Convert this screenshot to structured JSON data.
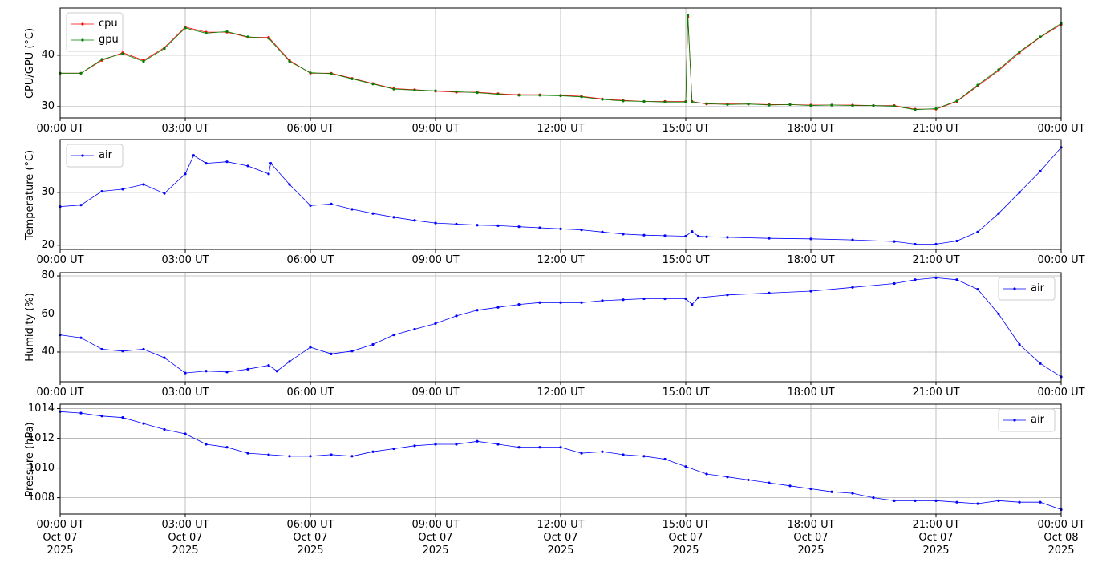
{
  "chart_data": [
    {
      "type": "line",
      "ylabel": "CPU/GPU (°C)",
      "legend": "upper left",
      "grid": true,
      "x": [
        0,
        0.5,
        1,
        1.5,
        2,
        2.5,
        3,
        3.5,
        4,
        4.5,
        5,
        5.5,
        6,
        6.5,
        7,
        7.5,
        8,
        8.5,
        9,
        9.5,
        10,
        10.5,
        11,
        11.5,
        12,
        12.5,
        13,
        13.5,
        14,
        14.5,
        15,
        15.05,
        15.15,
        15.5,
        16,
        16.5,
        17,
        17.5,
        18,
        18.5,
        19,
        19.5,
        20,
        20.5,
        21,
        21.5,
        22,
        22.5,
        23,
        23.5,
        24
      ],
      "series": [
        {
          "name": "cpu",
          "color": "#ff0000",
          "values": [
            36.5,
            36.5,
            39,
            40.5,
            39,
            41.5,
            45.5,
            44.5,
            44.5,
            43.5,
            43.5,
            39,
            36.5,
            36.5,
            35.5,
            34.5,
            33.5,
            33.3,
            33,
            32.8,
            32.8,
            32.5,
            32.3,
            32.3,
            32.2,
            32,
            31.5,
            31.2,
            31,
            31,
            31,
            47.5,
            31,
            30.5,
            30.5,
            30.5,
            30.4,
            30.4,
            30.3,
            30.3,
            30.3,
            30.2,
            30.2,
            29.5,
            29.5,
            31,
            34,
            37,
            40.5,
            43.5,
            46
          ]
        },
        {
          "name": "gpu",
          "color": "#008000",
          "values": [
            36.5,
            36.5,
            39.2,
            40.3,
            38.8,
            41.3,
            45.3,
            44.3,
            44.6,
            43.6,
            43.3,
            38.8,
            36.6,
            36.4,
            35.4,
            34.4,
            33.4,
            33.2,
            33.1,
            32.9,
            32.7,
            32.4,
            32.2,
            32.2,
            32.1,
            31.9,
            31.4,
            31.1,
            31,
            30.9,
            30.9,
            47.8,
            30.9,
            30.6,
            30.4,
            30.5,
            30.3,
            30.4,
            30.2,
            30.3,
            30.2,
            30.2,
            30.1,
            29.4,
            29.6,
            31.1,
            34.2,
            37.2,
            40.7,
            43.6,
            46.2
          ]
        }
      ],
      "xlim": [
        0,
        24
      ],
      "xticks": [
        {
          "value": 0,
          "label": "00:00 UT"
        },
        {
          "value": 3,
          "label": "03:00 UT"
        },
        {
          "value": 6,
          "label": "06:00 UT"
        },
        {
          "value": 9,
          "label": "09:00 UT"
        },
        {
          "value": 12,
          "label": "12:00 UT"
        },
        {
          "value": 15,
          "label": "15:00 UT"
        },
        {
          "value": 18,
          "label": "18:00 UT"
        },
        {
          "value": 21,
          "label": "21:00 UT"
        },
        {
          "value": 24,
          "label": "00:00 UT"
        }
      ],
      "ylim": [
        27.8,
        49.2
      ],
      "yticks": [
        30,
        40
      ]
    },
    {
      "type": "line",
      "ylabel": "Temperature (°C)",
      "legend": "upper left",
      "grid": true,
      "x": [
        0,
        0.5,
        1,
        1.5,
        2,
        2.5,
        3,
        3.2,
        3.5,
        4,
        4.5,
        5,
        5.05,
        5.5,
        6,
        6.5,
        7,
        7.5,
        8,
        8.5,
        9,
        9.5,
        10,
        10.5,
        11,
        11.5,
        12,
        12.5,
        13,
        13.5,
        14,
        14.5,
        15,
        15.15,
        15.3,
        15.5,
        16,
        17,
        18,
        19,
        20,
        20.5,
        21,
        21.5,
        22,
        22.5,
        23,
        23.5,
        24
      ],
      "series": [
        {
          "name": "air",
          "color": "#0000ff",
          "values": [
            27.3,
            27.6,
            30.2,
            30.6,
            31.5,
            29.8,
            33.5,
            37,
            35.5,
            35.8,
            35,
            33.5,
            35.5,
            31.5,
            27.5,
            27.8,
            26.8,
            26,
            25.3,
            24.7,
            24.2,
            24,
            23.8,
            23.7,
            23.5,
            23.3,
            23.1,
            22.9,
            22.5,
            22.1,
            21.9,
            21.8,
            21.7,
            22.6,
            21.7,
            21.6,
            21.5,
            21.3,
            21.2,
            21,
            20.7,
            20.2,
            20.2,
            20.8,
            22.5,
            26,
            30,
            34,
            38.5
          ]
        }
      ],
      "xlim": [
        0,
        24
      ],
      "xticks": [
        {
          "value": 0,
          "label": "00:00 UT"
        },
        {
          "value": 3,
          "label": "03:00 UT"
        },
        {
          "value": 6,
          "label": "06:00 UT"
        },
        {
          "value": 9,
          "label": "09:00 UT"
        },
        {
          "value": 12,
          "label": "12:00 UT"
        },
        {
          "value": 15,
          "label": "15:00 UT"
        },
        {
          "value": 18,
          "label": "18:00 UT"
        },
        {
          "value": 21,
          "label": "21:00 UT"
        },
        {
          "value": 24,
          "label": "00:00 UT"
        }
      ],
      "ylim": [
        19.2,
        40
      ],
      "yticks": [
        20,
        30
      ]
    },
    {
      "type": "line",
      "ylabel": "Humidity (%)",
      "legend": "upper right",
      "grid": true,
      "x": [
        0,
        0.5,
        1,
        1.5,
        2,
        2.5,
        3,
        3.5,
        4,
        4.5,
        5,
        5.2,
        5.5,
        6,
        6.5,
        7,
        7.5,
        8,
        8.5,
        9,
        9.5,
        10,
        10.5,
        11,
        11.5,
        12,
        12.5,
        13,
        13.5,
        14,
        14.5,
        15,
        15.15,
        15.3,
        16,
        17,
        18,
        19,
        20,
        20.5,
        21,
        21.5,
        22,
        22.5,
        23,
        23.5,
        24
      ],
      "series": [
        {
          "name": "air",
          "color": "#0000ff",
          "values": [
            49,
            47.5,
            41.5,
            40.5,
            41.5,
            37,
            29,
            30,
            29.5,
            31,
            33,
            30,
            35,
            42.5,
            39,
            40.5,
            44,
            49,
            52,
            55,
            59,
            62,
            63.5,
            65,
            66,
            66,
            66,
            67,
            67.5,
            68,
            68,
            68,
            65,
            68.5,
            70,
            71,
            72,
            74,
            76,
            78,
            79,
            78,
            73,
            60,
            44,
            34,
            27
          ]
        }
      ],
      "xlim": [
        0,
        24
      ],
      "xticks": [
        {
          "value": 0,
          "label": "00:00 UT"
        },
        {
          "value": 3,
          "label": "03:00 UT"
        },
        {
          "value": 6,
          "label": "06:00 UT"
        },
        {
          "value": 9,
          "label": "09:00 UT"
        },
        {
          "value": 12,
          "label": "12:00 UT"
        },
        {
          "value": 15,
          "label": "15:00 UT"
        },
        {
          "value": 18,
          "label": "18:00 UT"
        },
        {
          "value": 21,
          "label": "21:00 UT"
        },
        {
          "value": 24,
          "label": "00:00 UT"
        }
      ],
      "ylim": [
        24.4,
        81.7
      ],
      "yticks": [
        40,
        60,
        80
      ]
    },
    {
      "type": "line",
      "ylabel": "Pressure (hPa)",
      "legend": "upper right",
      "grid": true,
      "x": [
        0,
        0.5,
        1,
        1.5,
        2,
        2.5,
        3,
        3.5,
        4,
        4.5,
        5,
        5.5,
        6,
        6.5,
        7,
        7.5,
        8,
        8.5,
        9,
        9.5,
        10,
        10.5,
        11,
        11.5,
        12,
        12.5,
        13,
        13.5,
        14,
        14.5,
        15,
        15.5,
        16,
        16.5,
        17,
        17.5,
        18,
        18.5,
        19,
        19.5,
        20,
        20.5,
        21,
        21.5,
        22,
        22.5,
        23,
        23.5,
        24
      ],
      "series": [
        {
          "name": "air",
          "color": "#0000ff",
          "values": [
            1013.8,
            1013.7,
            1013.5,
            1013.4,
            1013,
            1012.6,
            1012.3,
            1011.6,
            1011.4,
            1011,
            1010.9,
            1010.8,
            1010.8,
            1010.9,
            1010.8,
            1011.1,
            1011.3,
            1011.5,
            1011.6,
            1011.6,
            1011.8,
            1011.6,
            1011.4,
            1011.4,
            1011.4,
            1011,
            1011.1,
            1010.9,
            1010.8,
            1010.6,
            1010.1,
            1009.6,
            1009.4,
            1009.2,
            1009,
            1008.8,
            1008.6,
            1008.4,
            1008.3,
            1008,
            1007.8,
            1007.8,
            1007.8,
            1007.7,
            1007.6,
            1007.8,
            1007.7,
            1007.7,
            1007.2
          ]
        }
      ],
      "xlim": [
        0,
        24
      ],
      "xticks": [
        {
          "value": 0,
          "label": "00:00 UT\nOct 07\n2025"
        },
        {
          "value": 3,
          "label": "03:00 UT\nOct 07\n2025"
        },
        {
          "value": 6,
          "label": "06:00 UT\nOct 07\n2025"
        },
        {
          "value": 9,
          "label": "09:00 UT\nOct 07\n2025"
        },
        {
          "value": 12,
          "label": "12:00 UT\nOct 07\n2025"
        },
        {
          "value": 15,
          "label": "15:00 UT\nOct 07\n2025"
        },
        {
          "value": 18,
          "label": "18:00 UT\nOct 07\n2025"
        },
        {
          "value": 21,
          "label": "21:00 UT\nOct 07\n2025"
        },
        {
          "value": 24,
          "label": "00:00 UT\nOct 08\n2025"
        }
      ],
      "ylim": [
        1006.9,
        1014.3
      ],
      "yticks": [
        1008,
        1010,
        1012,
        1014
      ]
    }
  ]
}
